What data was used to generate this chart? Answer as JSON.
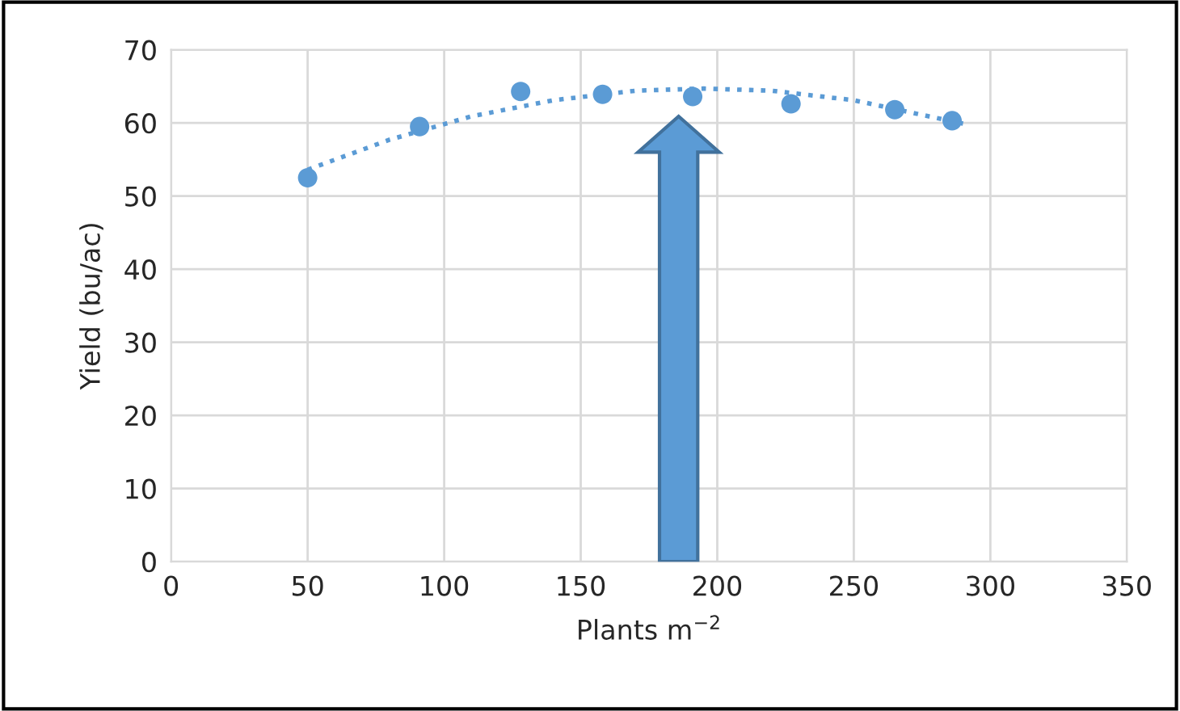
{
  "chart_data": {
    "type": "scatter",
    "xlabel": "Plants m$^{−2}$",
    "ylabel": "Yield (bu/ac)",
    "series": [
      {
        "color": "#5b9bd5",
        "marker": "circle",
        "x": [
          50,
          91,
          128,
          158,
          191,
          227,
          265,
          286
        ],
        "values": [
          52.5,
          59.5,
          64.3,
          63.9,
          63.6,
          62.6,
          61.8,
          60.3
        ]
      },
      {
        "type": "line",
        "color": "#5b9bd5",
        "line_style": "dotted",
        "x": [
          50,
          80,
          110,
          140,
          170,
          195,
          220,
          250,
          290
        ],
        "values": [
          53.6,
          57.7,
          60.9,
          63.1,
          64.4,
          64.7,
          64.4,
          63.1,
          59.9
        ]
      }
    ],
    "xlim": [
      0,
      350
    ],
    "ylim": [
      0,
      70
    ],
    "xticks": [
      0,
      50,
      100,
      150,
      200,
      250,
      300,
      350
    ],
    "yticks": [
      0,
      10,
      20,
      30,
      40,
      50,
      60,
      70
    ],
    "grid": true,
    "legend": false
  }
}
